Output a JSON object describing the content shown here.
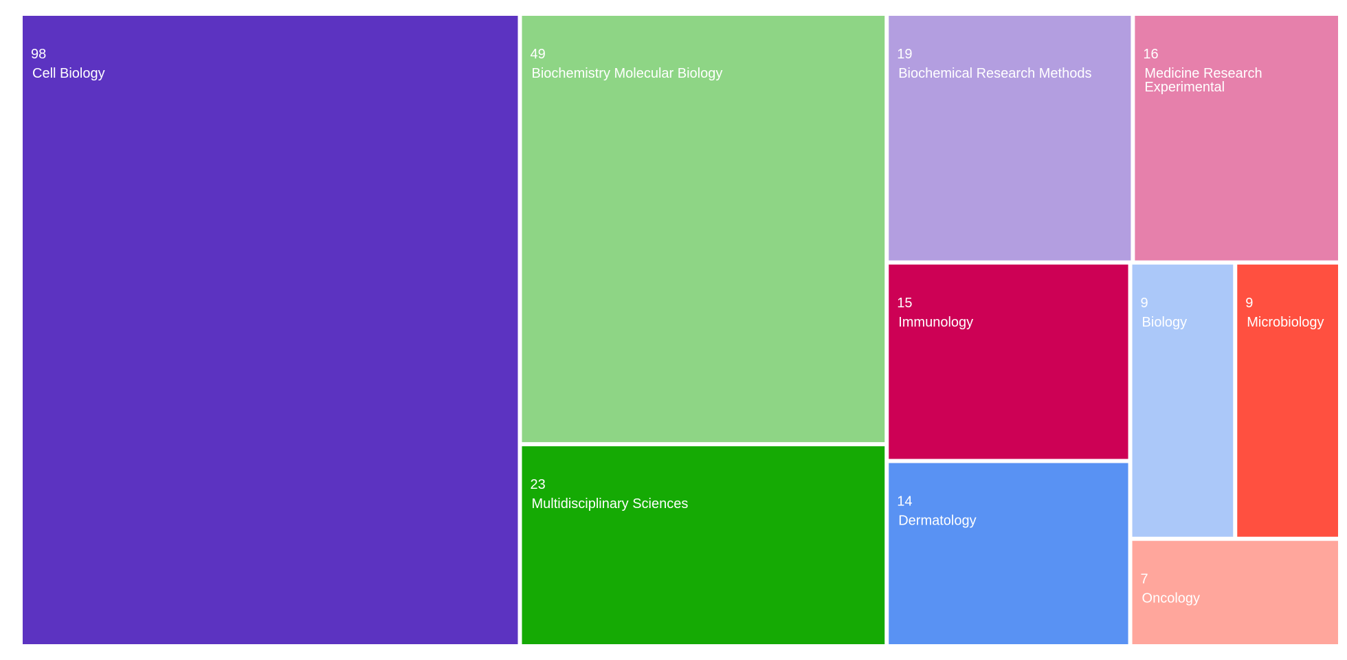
{
  "chart_data": {
    "type": "treemap",
    "title": "",
    "items": [
      {
        "name": "Cell Biology",
        "value": 98,
        "color": "#5c33c1"
      },
      {
        "name": "Biochemistry Molecular Biology",
        "value": 49,
        "color": "#8ed585"
      },
      {
        "name": "Multidisciplinary Sciences",
        "value": 23,
        "color": "#15aa04"
      },
      {
        "name": "Biochemical Research Methods",
        "value": 19,
        "color": "#b39ee0"
      },
      {
        "name": "Medicine Research Experimental",
        "value": 16,
        "color": "#e680ab"
      },
      {
        "name": "Immunology",
        "value": 15,
        "color": "#cd0155"
      },
      {
        "name": "Dermatology",
        "value": 14,
        "color": "#5992f3"
      },
      {
        "name": "Biology",
        "value": 9,
        "color": "#abc8f9"
      },
      {
        "name": "Microbiology",
        "value": 9,
        "color": "#ff5040"
      },
      {
        "name": "Oncology",
        "value": 7,
        "color": "#ffa69c"
      }
    ]
  }
}
